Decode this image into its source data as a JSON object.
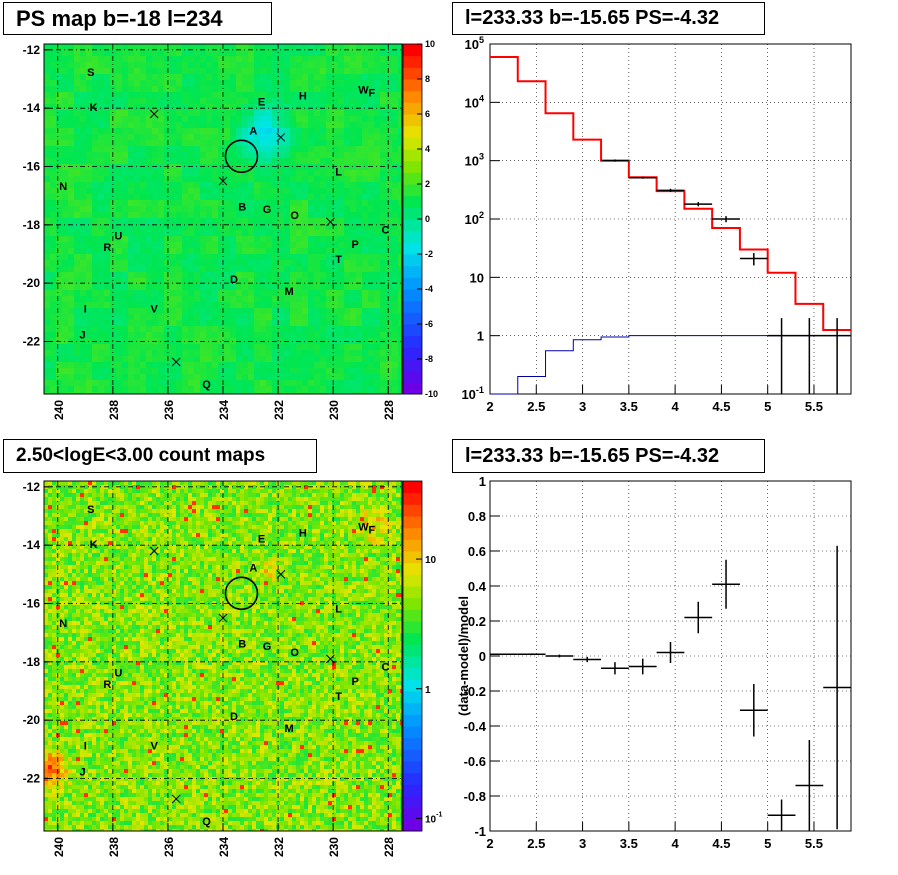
{
  "panels": {
    "tl": {
      "title": "PS map b=-18 l=234"
    },
    "tr": {
      "title": "l=233.33 b=-15.65 PS=-4.32"
    },
    "bl": {
      "title": "2.50<logE<3.00 count maps"
    },
    "br": {
      "title": "l=233.33 b=-15.65 PS=-4.32"
    }
  },
  "chart_data": [
    {
      "type": "heatmap",
      "id": "ps-map",
      "title": "PS map b=-18 l=234",
      "xlim": [
        240.5,
        227.5
      ],
      "ylim": [
        -23.8,
        -11.8
      ],
      "xticks": [
        240,
        238,
        236,
        234,
        232,
        230,
        228
      ],
      "yticks": [
        -12,
        -14,
        -16,
        -18,
        -20,
        -22
      ],
      "colorbar": {
        "min": -10,
        "max": 10,
        "ticks": [
          10,
          8,
          6,
          4,
          2,
          0,
          -2,
          -4,
          -6,
          -8,
          -10
        ],
        "scale": "linear"
      },
      "grid": true,
      "circle": {
        "l": 233.33,
        "b": -15.65
      },
      "labels": [
        {
          "t": "S",
          "l": 238.8,
          "b": -12.9
        },
        {
          "t": "K",
          "l": 238.7,
          "b": -14.1
        },
        {
          "t": "E",
          "l": 232.6,
          "b": -13.9
        },
        {
          "t": "H",
          "l": 231.1,
          "b": -13.7
        },
        {
          "t": "W",
          "l": 228.9,
          "b": -13.5
        },
        {
          "t": "F",
          "l": 228.6,
          "b": -13.6
        },
        {
          "t": "A",
          "l": 232.9,
          "b": -14.9
        },
        {
          "t": "N",
          "l": 239.8,
          "b": -16.8
        },
        {
          "t": "L",
          "l": 229.8,
          "b": -16.3
        },
        {
          "t": "B",
          "l": 233.3,
          "b": -17.5
        },
        {
          "t": "G",
          "l": 232.4,
          "b": -17.6
        },
        {
          "t": "O",
          "l": 231.4,
          "b": -17.8
        },
        {
          "t": "C",
          "l": 228.1,
          "b": -18.3
        },
        {
          "t": "U",
          "l": 237.8,
          "b": -18.5
        },
        {
          "t": "R",
          "l": 238.2,
          "b": -18.9
        },
        {
          "t": "P",
          "l": 229.2,
          "b": -18.8
        },
        {
          "t": "T",
          "l": 229.8,
          "b": -19.3
        },
        {
          "t": "D",
          "l": 233.6,
          "b": -20.0
        },
        {
          "t": "M",
          "l": 231.6,
          "b": -20.4
        },
        {
          "t": "I",
          "l": 239.0,
          "b": -21.0
        },
        {
          "t": "V",
          "l": 236.5,
          "b": -21.0
        },
        {
          "t": "J",
          "l": 239.1,
          "b": -21.9
        },
        {
          "t": "Q",
          "l": 234.6,
          "b": -23.6
        }
      ],
      "crosses": [
        {
          "l": 236.5,
          "b": -14.2
        },
        {
          "l": 231.9,
          "b": -15.0
        },
        {
          "l": 234.0,
          "b": -16.5
        },
        {
          "l": 230.1,
          "b": -17.9
        },
        {
          "l": 235.7,
          "b": -22.7
        }
      ]
    },
    {
      "type": "line",
      "id": "spectrum",
      "title": "l=233.33 b=-15.65 PS=-4.32",
      "xlim": [
        2,
        5.9
      ],
      "ylim": [
        0.1,
        100000
      ],
      "yscale": "log",
      "grid": true,
      "xticks": [
        "2",
        "2.5",
        "3",
        "3.5",
        "4",
        "4.5",
        "5",
        "5.5"
      ],
      "yticks": [
        {
          "v": 100000,
          "base": "10",
          "exp": "5"
        },
        {
          "v": 10000,
          "base": "10",
          "exp": "4"
        },
        {
          "v": 1000,
          "base": "10",
          "exp": "3"
        },
        {
          "v": 100,
          "base": "10",
          "exp": "2"
        },
        {
          "v": 10,
          "base": "10",
          "exp": ""
        },
        {
          "v": 1,
          "base": "1",
          "exp": ""
        },
        {
          "v": 0.1,
          "base": "10",
          "exp": "-1"
        }
      ],
      "bin_edges": [
        2.0,
        2.3,
        2.6,
        2.9,
        3.2,
        3.5,
        3.8,
        4.1,
        4.4,
        4.7,
        5.0,
        5.3,
        5.6,
        5.9
      ],
      "series": [
        {
          "color": "#ff0000",
          "values": [
            60000,
            23000,
            6500,
            2300,
            1000,
            520,
            300,
            150,
            70,
            30,
            12,
            3.5,
            1.25
          ]
        },
        {
          "color": "#0000aa",
          "values": [
            0.1,
            0.2,
            0.55,
            0.85,
            0.95,
            1.0,
            1.0,
            1.0,
            1.0,
            1.0,
            1.0,
            1.0,
            1.0
          ]
        }
      ],
      "data_points": [
        {
          "x": 3.35,
          "y": 1000,
          "lo": 960,
          "hi": 1050
        },
        {
          "x": 3.65,
          "y": 510,
          "lo": 490,
          "hi": 530
        },
        {
          "x": 3.95,
          "y": 310,
          "lo": 290,
          "hi": 330
        },
        {
          "x": 4.25,
          "y": 180,
          "lo": 165,
          "hi": 195
        },
        {
          "x": 4.55,
          "y": 100,
          "lo": 88,
          "hi": 112
        },
        {
          "x": 4.85,
          "y": 21,
          "lo": 16,
          "hi": 26
        },
        {
          "x": 5.15,
          "y": 1.0,
          "lo": 0.1,
          "hi": 2.0
        },
        {
          "x": 5.45,
          "y": 1.0,
          "lo": 0.1,
          "hi": 2.0
        },
        {
          "x": 5.75,
          "y": 1.0,
          "lo": 0.1,
          "hi": 2.0
        }
      ]
    },
    {
      "type": "heatmap",
      "id": "count-map",
      "title": "2.50<logE<3.00 count maps",
      "xlim": [
        240.5,
        227.5
      ],
      "ylim": [
        -23.8,
        -11.8
      ],
      "xticks": [
        240,
        238,
        236,
        234,
        232,
        230,
        228
      ],
      "yticks": [
        -12,
        -14,
        -16,
        -18,
        -20,
        -22
      ],
      "colorbar": {
        "scale": "log",
        "min": 0.08,
        "max": 40,
        "ticks": [
          {
            "v": 10,
            "base": "10",
            "exp": ""
          },
          {
            "v": 1,
            "base": "1",
            "exp": ""
          },
          {
            "v": 0.1,
            "base": "10",
            "exp": "-1"
          }
        ]
      },
      "grid": true,
      "circle": {
        "l": 233.33,
        "b": -15.65
      }
    },
    {
      "type": "scatter",
      "id": "residuals",
      "title": "l=233.33 b=-15.65 PS=-4.32",
      "ylabel": "(data-model)/model",
      "xlim": [
        2,
        5.9
      ],
      "ylim": [
        -1,
        1
      ],
      "grid": true,
      "xticks": [
        "2",
        "2.5",
        "3",
        "3.5",
        "4",
        "4.5",
        "5",
        "5.5"
      ],
      "yticks": [
        "1",
        "0.8",
        "0.6",
        "0.4",
        "0.2",
        "0",
        "-0.2",
        "-0.4",
        "-0.6",
        "-0.8",
        "-1"
      ],
      "points": [
        {
          "x1": 2.0,
          "x2": 2.3,
          "y": 0.01,
          "e": 0.004
        },
        {
          "x1": 2.3,
          "x2": 2.6,
          "y": 0.01,
          "e": 0.005
        },
        {
          "x1": 2.6,
          "x2": 2.9,
          "y": 0.0,
          "e": 0.008
        },
        {
          "x1": 2.9,
          "x2": 3.2,
          "y": -0.02,
          "e": 0.015
        },
        {
          "x1": 3.2,
          "x2": 3.5,
          "y": -0.07,
          "e": 0.035
        },
        {
          "x1": 3.5,
          "x2": 3.8,
          "y": -0.06,
          "e": 0.045
        },
        {
          "x1": 3.8,
          "x2": 4.1,
          "y": 0.02,
          "e": 0.06
        },
        {
          "x1": 4.1,
          "x2": 4.4,
          "y": 0.22,
          "e": 0.09
        },
        {
          "x1": 4.4,
          "x2": 4.7,
          "y": 0.41,
          "e": 0.14
        },
        {
          "x1": 4.7,
          "x2": 5.0,
          "y": -0.31,
          "e": 0.15
        },
        {
          "x1": 5.0,
          "x2": 5.3,
          "y": -0.91,
          "e": 0.09
        },
        {
          "x1": 5.3,
          "x2": 5.6,
          "y": -0.74,
          "e": 0.26
        },
        {
          "x1": 5.6,
          "x2": 5.9,
          "y": -0.18,
          "e": 0.81
        }
      ]
    }
  ]
}
